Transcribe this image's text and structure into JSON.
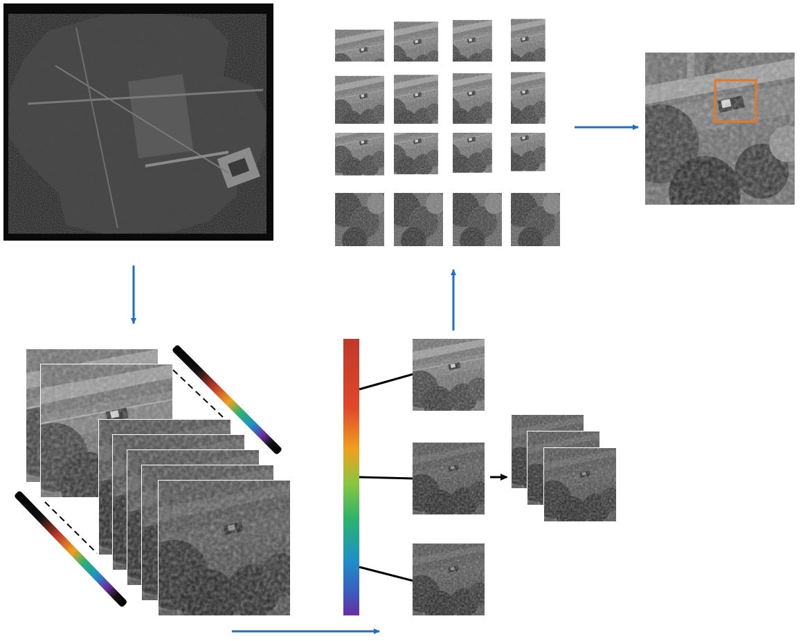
{
  "figure": {
    "description_text": "",
    "colors": {
      "background": "#ffffff",
      "arrow_blue": "#1c6fc4",
      "arrow_black": "#000000",
      "highlight_box": "#e87722",
      "dark_frame": "#0a0a0a"
    },
    "spectrum_stops": [
      "#c0392b",
      "#e0462a",
      "#f0a020",
      "#8cc63f",
      "#2db36a",
      "#1e90c8",
      "#3b5bbf",
      "#6a2ea0"
    ],
    "grid": {
      "rows": 4,
      "cols": 4
    },
    "panels": {
      "overview": {
        "kind": "aerial-overview-image"
      },
      "tile_grid": {
        "kind": "image-tile-grid"
      },
      "detection": {
        "kind": "detected-vehicle-image"
      },
      "hyperspectral_cube": {
        "kind": "stacked-spectral-bands"
      },
      "spectrum_bar": {
        "kind": "wavelength-color-bar"
      },
      "selected_bands": {
        "kind": "selected-band-images",
        "count": 3
      },
      "fused_stack": {
        "kind": "fused-band-stack",
        "count": 3
      }
    }
  }
}
